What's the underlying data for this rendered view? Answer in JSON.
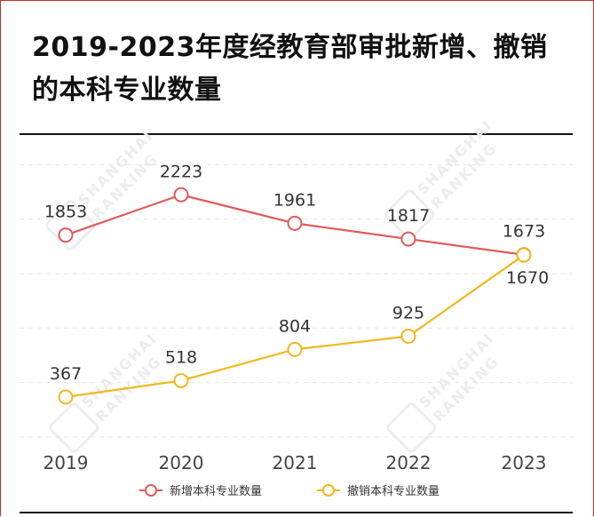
{
  "title": "2019-2023年度经教育部审批新增、撤销的本科专业数量",
  "watermark": {
    "line1": "SHANGHAI",
    "line2": "RANKING",
    "logo_text": "软科"
  },
  "chart_data": {
    "type": "line",
    "title": "2019-2023年度经教育部审批新增、撤销的本科专业数量",
    "xlabel": "",
    "ylabel": "",
    "categories": [
      "2019",
      "2020",
      "2021",
      "2022",
      "2023"
    ],
    "ylim": [
      0,
      2600
    ],
    "grid": true,
    "legend_position": "bottom-center",
    "series": [
      {
        "name": "新增本科专业数量",
        "values": [
          1853,
          2223,
          1961,
          1817,
          1673
        ],
        "color": "#e05a5a"
      },
      {
        "name": "撤销本科专业数量",
        "values": [
          367,
          518,
          804,
          925,
          1670
        ],
        "color": "#f0b81c"
      }
    ]
  }
}
